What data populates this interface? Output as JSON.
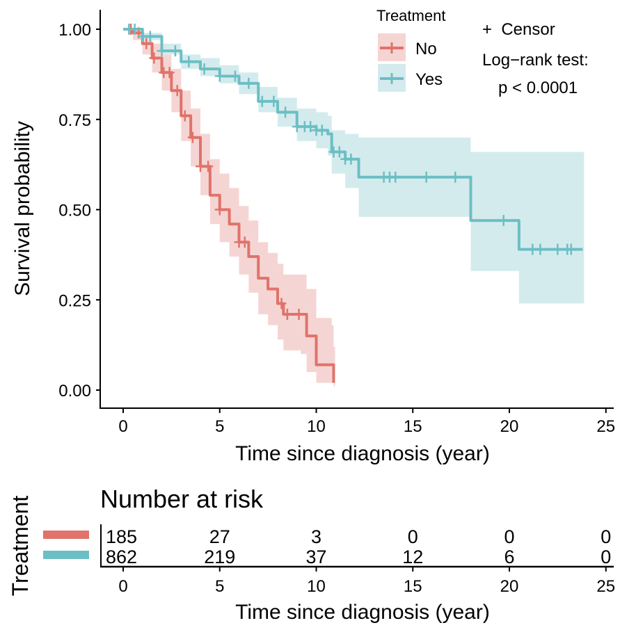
{
  "chart_data": [
    {
      "type": "line",
      "subtype": "kaplan-meier",
      "title": "",
      "xlabel": "Time since diagnosis (year)",
      "ylabel": "Survival probability",
      "xlim": [
        -1.2,
        26.2
      ],
      "ylim": [
        -0.05,
        1.05
      ],
      "xticks": [
        0,
        5,
        10,
        15,
        20,
        25
      ],
      "xtick_labels": [
        "0",
        "5",
        "10",
        "15",
        "20",
        "25"
      ],
      "yticks": [
        0,
        0.25,
        0.5,
        0.75,
        1.0
      ],
      "ytick_labels": [
        "0.00",
        "0.25",
        "0.50",
        "0.75",
        "1.00"
      ],
      "grid": false,
      "legend": {
        "title": "Treatment",
        "placement": "top-right",
        "entries": [
          "No",
          "Yes"
        ]
      },
      "annotations": {
        "censor_label": "+  Censor",
        "test_label": "Log−rank test:",
        "p_value": "p < 0.0001"
      },
      "series": [
        {
          "name": "No",
          "color": "#E0736A",
          "ci_color": "#F5D5D3",
          "x": [
            0,
            0.5,
            1.0,
            1.5,
            2.0,
            2.5,
            3.0,
            3.5,
            4.0,
            4.5,
            5.0,
            5.5,
            6.0,
            6.5,
            7.0,
            7.5,
            8.0,
            8.3,
            9.2,
            9.5,
            10.0,
            10.8,
            10.9
          ],
          "y": [
            1.0,
            0.99,
            0.96,
            0.92,
            0.88,
            0.83,
            0.76,
            0.7,
            0.62,
            0.54,
            0.5,
            0.46,
            0.41,
            0.37,
            0.31,
            0.28,
            0.24,
            0.21,
            0.21,
            0.15,
            0.07,
            0.07,
            0.02
          ],
          "ci_lower": [
            1.0,
            0.97,
            0.93,
            0.88,
            0.83,
            0.77,
            0.69,
            0.62,
            0.54,
            0.46,
            0.41,
            0.37,
            0.32,
            0.27,
            0.21,
            0.18,
            0.14,
            0.11,
            0.1,
            0.05,
            0.02,
            0.02,
            0.01
          ],
          "ci_upper": [
            1.0,
            1.0,
            0.99,
            0.96,
            0.93,
            0.89,
            0.83,
            0.78,
            0.71,
            0.64,
            0.6,
            0.56,
            0.51,
            0.47,
            0.41,
            0.38,
            0.35,
            0.32,
            0.32,
            0.28,
            0.2,
            0.18,
            0.12
          ],
          "censor_x": [
            0.4,
            0.8,
            1.2,
            1.6,
            2.1,
            2.4,
            2.8,
            3.2,
            3.6,
            4.0,
            4.4,
            5.0,
            6.0,
            6.3,
            8.2,
            8.5,
            9.1
          ]
        },
        {
          "name": "Yes",
          "color": "#6BBFC4",
          "ci_color": "#D4EBED",
          "x": [
            0,
            1.0,
            2.0,
            3.0,
            4.0,
            5.0,
            6.0,
            7.0,
            8.0,
            9.0,
            10.0,
            10.6,
            10.8,
            11.5,
            12.2,
            17.6,
            18.0,
            20.4,
            20.5,
            23.8
          ],
          "y": [
            1.0,
            0.98,
            0.94,
            0.91,
            0.89,
            0.87,
            0.85,
            0.8,
            0.77,
            0.73,
            0.72,
            0.71,
            0.66,
            0.64,
            0.59,
            0.59,
            0.47,
            0.47,
            0.39,
            0.39
          ],
          "ci_lower": [
            1.0,
            0.97,
            0.93,
            0.89,
            0.87,
            0.85,
            0.82,
            0.77,
            0.73,
            0.69,
            0.67,
            0.65,
            0.6,
            0.56,
            0.48,
            0.48,
            0.33,
            0.33,
            0.24,
            0.24
          ],
          "ci_upper": [
            1.0,
            0.99,
            0.96,
            0.93,
            0.92,
            0.9,
            0.88,
            0.84,
            0.81,
            0.78,
            0.77,
            0.76,
            0.72,
            0.71,
            0.7,
            0.7,
            0.66,
            0.66,
            0.66,
            0.66
          ],
          "censor_x": [
            0.3,
            0.6,
            1.0,
            1.4,
            2.0,
            2.7,
            3.4,
            4.2,
            5.0,
            5.8,
            6.5,
            7.2,
            7.8,
            8.4,
            9.0,
            9.4,
            9.7,
            10.0,
            10.3,
            10.9,
            11.2,
            11.5,
            11.8,
            13.5,
            13.8,
            14.1,
            15.7,
            17.2,
            19.7,
            21.2,
            21.6,
            22.5,
            23.0,
            23.2
          ]
        }
      ]
    },
    {
      "type": "table",
      "title": "Number at risk",
      "row_axis_label": "Treatment",
      "xlabel": "Time since diagnosis (year)",
      "columns": [
        "0",
        "5",
        "10",
        "15",
        "20",
        "25"
      ],
      "rows": [
        {
          "name": "No",
          "color": "#E0736A",
          "values": [
            "185",
            "27",
            "3",
            "0",
            "0",
            "0"
          ]
        },
        {
          "name": "Yes",
          "color": "#6BBFC4",
          "values": [
            "862",
            "219",
            "37",
            "12",
            "6",
            "0"
          ]
        }
      ]
    }
  ]
}
